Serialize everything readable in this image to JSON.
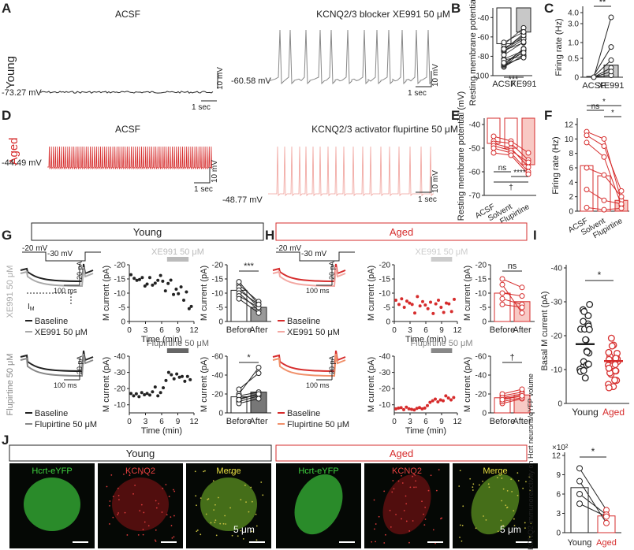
{
  "colors": {
    "red": "#d62c2c",
    "light_red": "#f0a09a",
    "gray": "#888888",
    "dark": "#222222",
    "bar_gray": "#c8c8c8",
    "bar_red_light": "#f8c9c4",
    "ghost_red": "#f3a8a3"
  },
  "panel_letters": {
    "A": "A",
    "B": "B",
    "C": "C",
    "D": "D",
    "E": "E",
    "F": "F",
    "G": "G",
    "H": "H",
    "I": "I",
    "J": "J"
  },
  "panelA": {
    "title_left": "ACSF",
    "title_right": "KCNQ2/3 blocker XE991 50 μM",
    "row_label": "Young",
    "vm_left": "-73.27 mV",
    "vm_right": "-60.58 mV",
    "scale_v": "10 mV",
    "scale_t": "1 sec"
  },
  "panelD": {
    "title_left": "ACSF",
    "title_right": "KCNQ2/3 activator flupirtine 50 μM",
    "row_label": "Aged",
    "vm_left": "-44.49 mV",
    "vm_right": "-48.77 mV",
    "scale_v": "10 mV",
    "scale_t": "1 sec"
  },
  "chart_data": [
    {
      "id": "B",
      "type": "bar",
      "ylabel": "Resting membrane potential (mV)",
      "categories": [
        "ACSF",
        "XE991"
      ],
      "values": [
        -67,
        -55
      ],
      "yticks": [
        "-40",
        "-60",
        "-80",
        "-100"
      ],
      "ylim": [
        -100,
        -30
      ],
      "significance": "***"
    },
    {
      "id": "C",
      "type": "bar",
      "ylabel": "Firing rate (Hz)",
      "categories": [
        "ACSF",
        "XE991"
      ],
      "values": [
        0.02,
        0.32
      ],
      "yticks": [
        "4.0",
        "3.0",
        "1.0",
        "0.5",
        "0"
      ],
      "significance": "**"
    },
    {
      "id": "E",
      "type": "bar",
      "ylabel": "Resting membrane potential (mV)",
      "categories": [
        "ACSF",
        "Solvent",
        "Flupirtine"
      ],
      "values": [
        -48,
        -50,
        -57
      ],
      "yticks": [
        "-40",
        "-50",
        "-60",
        "-70"
      ],
      "ylim": [
        -70,
        -40
      ],
      "significance": [
        "ns",
        "****",
        "†"
      ]
    },
    {
      "id": "F",
      "type": "bar",
      "ylabel": "Firing rate (Hz)",
      "categories": [
        "ACSF",
        "Solvent",
        "Flupirtine"
      ],
      "values": [
        6.3,
        4.9,
        1.5
      ],
      "yticks": [
        "0",
        "2",
        "4",
        "6",
        "8",
        "10",
        "12"
      ],
      "ylim": [
        0,
        12
      ],
      "significance": [
        "ns",
        "*",
        "*"
      ]
    },
    {
      "id": "G-XE991-time",
      "type": "scatter",
      "xlabel": "Time (min)",
      "ylabel": "M current (pA)",
      "bar_label": "XE991 50 μM",
      "xticks": [
        "0",
        "3",
        "6",
        "9",
        "12"
      ],
      "yticks": [
        "0",
        "-5",
        "-10",
        "-15",
        "-20"
      ],
      "x": [
        0.3,
        0.9,
        1.4,
        1.9,
        2.4,
        2.9,
        3.3,
        3.8,
        4.3,
        4.8,
        5.3,
        5.8,
        6.2,
        6.7,
        7.2,
        7.7,
        8.2,
        8.7,
        9.1,
        9.6,
        10.1,
        10.6,
        11.1,
        11.5
      ],
      "y": [
        -16.5,
        -15.2,
        -14.5,
        -14.8,
        -15.5,
        -12.5,
        -13.2,
        -15.5,
        -12.8,
        -13.5,
        -14.5,
        -16.2,
        -14.2,
        -10.8,
        -13.4,
        -14.6,
        -9.5,
        -11.4,
        -9.8,
        -12.2,
        -7.5,
        -10.4,
        -4.5,
        -5.3
      ]
    },
    {
      "id": "G-XE991-bar",
      "type": "bar",
      "ylabel": "M current (pA)",
      "categories": [
        "Before",
        "After"
      ],
      "values": [
        -11,
        -5
      ],
      "yticks": [
        "0",
        "-5",
        "-10",
        "-15",
        "-20"
      ],
      "significance": "***"
    },
    {
      "id": "G-Flup-time",
      "type": "scatter",
      "xlabel": "Time (min)",
      "ylabel": "M current (pA)",
      "bar_label": "Flupirtine 50 μM",
      "xticks": [
        "0",
        "3",
        "6",
        "9",
        "12"
      ],
      "yticks": [
        "-40",
        "-30",
        "-20",
        "-10"
      ],
      "x": [
        0.3,
        0.8,
        1.3,
        1.8,
        2.3,
        2.8,
        3.3,
        3.8,
        4.3,
        4.8,
        5.3,
        5.8,
        6.3,
        6.8,
        7.3,
        7.8,
        8.3,
        8.8,
        9.3,
        9.8,
        10.3,
        10.8,
        11.3
      ],
      "y": [
        -17,
        -15.5,
        -16.8,
        -15,
        -17.5,
        -16.2,
        -17,
        -16,
        -18,
        -21,
        -15.5,
        -17.5,
        -20.5,
        -25,
        -30,
        -28.5,
        -26,
        -29,
        -27,
        -27.5,
        -24.5,
        -27.5,
        -25.5
      ]
    },
    {
      "id": "G-Flup-bar",
      "type": "bar",
      "ylabel": "M current (pA)",
      "categories": [
        "Before",
        "After"
      ],
      "values": [
        -17,
        -22
      ],
      "yticks": [
        "0",
        "-20",
        "-40",
        "-60"
      ],
      "significance": "*"
    },
    {
      "id": "H-XE991-time",
      "type": "scatter",
      "xlabel": "Time (min)",
      "ylabel": "M current (pA)",
      "bar_label": "XE991 50 μM",
      "xticks": [
        "0",
        "3",
        "6",
        "9",
        "12"
      ],
      "yticks": [
        "0",
        "-5",
        "-10",
        "-15",
        "-20"
      ],
      "x": [
        0.3,
        0.9,
        1.4,
        1.9,
        2.4,
        2.9,
        3.4,
        3.9,
        4.4,
        4.9,
        5.4,
        5.9,
        6.4,
        6.9,
        7.4,
        7.9,
        8.4,
        8.9,
        9.4,
        9.9,
        10.4,
        10.9,
        11.4
      ],
      "y": [
        -7.5,
        -6,
        -8,
        -5,
        -7.2,
        -6.5,
        -6,
        -3,
        -8.8,
        -5.5,
        -7,
        -5.8,
        -4.5,
        -6.8,
        -2.8,
        -6.2,
        -7.5,
        -5,
        -3.2,
        -6.5,
        -6.2,
        -3.5,
        -7.8
      ]
    },
    {
      "id": "H-XE991-bar",
      "type": "bar",
      "ylabel": "M current (pA)",
      "categories": [
        "Before",
        "After"
      ],
      "values": [
        -10,
        -7
      ],
      "yticks": [
        "0",
        "-5",
        "-10",
        "-15",
        "-20"
      ],
      "significance": "ns"
    },
    {
      "id": "H-Flup-time",
      "type": "scatter",
      "xlabel": "Time (min)",
      "ylabel": "M current (pA)",
      "bar_label": "Flupirtine 50 μM",
      "xticks": [
        "0",
        "3",
        "6",
        "9",
        "12"
      ],
      "yticks": [
        "-40",
        "-30",
        "-20",
        "-10"
      ],
      "x": [
        0.3,
        0.8,
        1.3,
        1.8,
        2.3,
        2.8,
        3.3,
        3.8,
        4.3,
        4.8,
        5.3,
        5.8,
        6.3,
        6.8,
        7.3,
        7.8,
        8.3,
        8.8,
        9.3,
        9.8,
        10.3,
        10.8,
        11.3
      ],
      "y": [
        -7.5,
        -8,
        -8.2,
        -7,
        -8.5,
        -7.5,
        -7.2,
        -6.8,
        -7.8,
        -8.3,
        -7.5,
        -8,
        -9.5,
        -11.5,
        -12.5,
        -13.5,
        -11.8,
        -13,
        -12.5,
        -15.5,
        -14.2,
        -13,
        -14.5
      ]
    },
    {
      "id": "H-Flup-bar",
      "type": "bar",
      "ylabel": "M current (pA)",
      "categories": [
        "Before",
        "After"
      ],
      "values": [
        -16,
        -19
      ],
      "yticks": [
        "0",
        "-20",
        "-40",
        "-60"
      ],
      "significance": "†"
    },
    {
      "id": "I",
      "type": "scatter",
      "ylabel": "Basal M current (pA)",
      "categories": [
        "Young",
        "Aged"
      ],
      "means": [
        -17.5,
        -12.5
      ],
      "yticks": [
        "0",
        "-10",
        "-20",
        "-30",
        "-40"
      ],
      "ylim": [
        -40,
        0
      ],
      "significance": "*"
    },
    {
      "id": "J-chart",
      "type": "bar",
      "ylabel": "KCNQ2 immunoreactivity on Hcrt neurons/eYFP volume",
      "multiplier": "×10²",
      "categories": [
        "Young",
        "Aged"
      ],
      "values": [
        7,
        2.6
      ],
      "yticks": [
        "0",
        "3",
        "6",
        "9",
        "12"
      ],
      "ylim": [
        0,
        12
      ],
      "significance": "*"
    }
  ],
  "panelG": {
    "header": "Young",
    "row1_label": "XE991 50 μM",
    "row2_label": "Flupirtine 50 μM",
    "v1": "-20 mV",
    "v2": "-30 mV",
    "scale_pa": "20 pA",
    "scale_ms": "100 ms",
    "legend_base": "Baseline",
    "legend_drug1": "XE991 50 μM",
    "legend_drug2": "Flupirtine 50 μM",
    "im": "I",
    "im_sub": "M"
  },
  "panelH": {
    "header": "Aged",
    "v1": "-20 mV",
    "v2": "-30 mV",
    "scale_pa": "20 pA",
    "scale_ms": "100 ms",
    "legend_base": "Baseline",
    "legend_drug1": "XE991 50 μM",
    "legend_drug2": "Flupirtine 50 μM"
  },
  "panelJ": {
    "young_header": "Young",
    "aged_header": "Aged",
    "img_labels": [
      "Hcrt-eYFP",
      "KCNQ2",
      "Merge"
    ],
    "scale": "5 μm"
  }
}
